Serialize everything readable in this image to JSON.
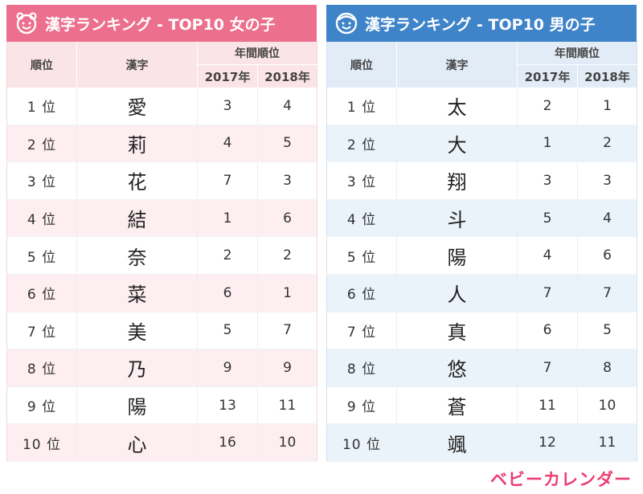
{
  "girls": {
    "title": "漢字ランキング - TOP10 女の子",
    "icon": "girl-face-icon",
    "headers": {
      "rank": "順位",
      "kanji": "漢字",
      "yearly": "年間順位",
      "y2017": "2017年",
      "y2018": "2018年"
    },
    "rows": [
      {
        "rank": "1 位",
        "kanji": "愛",
        "y2017": "3",
        "y2018": "4"
      },
      {
        "rank": "2 位",
        "kanji": "莉",
        "y2017": "4",
        "y2018": "5"
      },
      {
        "rank": "3 位",
        "kanji": "花",
        "y2017": "7",
        "y2018": "3"
      },
      {
        "rank": "4 位",
        "kanji": "結",
        "y2017": "1",
        "y2018": "6"
      },
      {
        "rank": "5 位",
        "kanji": "奈",
        "y2017": "2",
        "y2018": "2"
      },
      {
        "rank": "6 位",
        "kanji": "菜",
        "y2017": "6",
        "y2018": "1"
      },
      {
        "rank": "7 位",
        "kanji": "美",
        "y2017": "5",
        "y2018": "7"
      },
      {
        "rank": "8 位",
        "kanji": "乃",
        "y2017": "9",
        "y2018": "9"
      },
      {
        "rank": "9 位",
        "kanji": "陽",
        "y2017": "13",
        "y2018": "11"
      },
      {
        "rank": "10 位",
        "kanji": "心",
        "y2017": "16",
        "y2018": "10"
      }
    ]
  },
  "boys": {
    "title": "漢字ランキング - TOP10 男の子",
    "icon": "boy-face-icon",
    "headers": {
      "rank": "順位",
      "kanji": "漢字",
      "yearly": "年間順位",
      "y2017": "2017年",
      "y2018": "2018年"
    },
    "rows": [
      {
        "rank": "1 位",
        "kanji": "太",
        "y2017": "2",
        "y2018": "1"
      },
      {
        "rank": "2 位",
        "kanji": "大",
        "y2017": "1",
        "y2018": "2"
      },
      {
        "rank": "3 位",
        "kanji": "翔",
        "y2017": "3",
        "y2018": "3"
      },
      {
        "rank": "4 位",
        "kanji": "斗",
        "y2017": "5",
        "y2018": "4"
      },
      {
        "rank": "5 位",
        "kanji": "陽",
        "y2017": "4",
        "y2018": "6"
      },
      {
        "rank": "6 位",
        "kanji": "人",
        "y2017": "7",
        "y2018": "7"
      },
      {
        "rank": "7 位",
        "kanji": "真",
        "y2017": "6",
        "y2018": "5"
      },
      {
        "rank": "8 位",
        "kanji": "悠",
        "y2017": "7",
        "y2018": "8"
      },
      {
        "rank": "9 位",
        "kanji": "蒼",
        "y2017": "11",
        "y2018": "10"
      },
      {
        "rank": "10 位",
        "kanji": "颯",
        "y2017": "12",
        "y2018": "11"
      }
    ]
  },
  "brand": "ベビーカレンダー",
  "colors": {
    "girl_accent": "#ec6f8d",
    "boy_accent": "#3f84c9",
    "brand": "#ec3f74"
  }
}
